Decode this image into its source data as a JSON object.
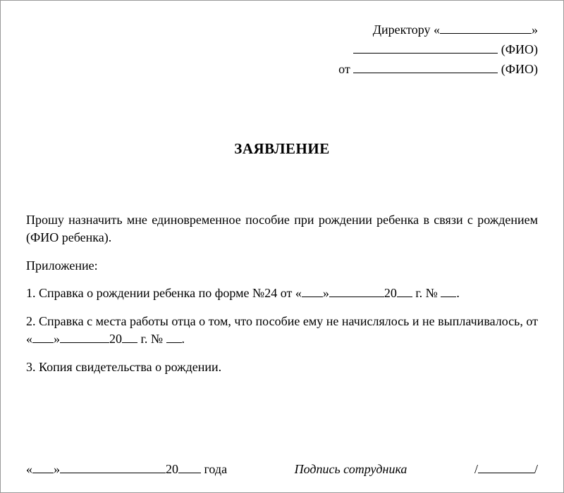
{
  "header": {
    "director_prefix": "Директору «",
    "director_blank_width": 130,
    "director_suffix": "»",
    "fio_blank_width": 205,
    "fio_label": "(ФИО)",
    "from_prefix": "от ",
    "from_blank_width": 205,
    "from_fio_label": "(ФИО)"
  },
  "title": "ЗАЯВЛЕНИЕ",
  "body": {
    "request": "Прошу назначить мне единовременное пособие при рождении ребенка в связи с рождением (ФИО ребенка).",
    "attachments_label": "Приложение:",
    "item1_pre": "1. Справка о рождении ребенка по форме №24 от «",
    "item1_day_w": 30,
    "item1_mid1": "»",
    "item1_month_w": 78,
    "item1_mid2": "20",
    "item1_year_w": 22,
    "item1_post": " г. № ",
    "item1_num_w": 22,
    "item1_end": ".",
    "item2_pre": "2. Справка с места работы отца о том, что пособие ему не начислялось и не выплачивалось, от «",
    "item2_day_w": 30,
    "item2_mid1": "»",
    "item2_month_w": 70,
    "item2_mid2": "20",
    "item2_year_w": 22,
    "item2_post": " г. № ",
    "item2_num_w": 22,
    "item2_end": ".",
    "item3": "3. Копия свидетельства о рождении."
  },
  "footer": {
    "date_open": "«",
    "date_day_w": 30,
    "date_mid1": "»",
    "date_month_w": 150,
    "date_mid2": "20",
    "date_year_w": 32,
    "date_post": " года",
    "sig_label": "Подпись сотрудника",
    "sig_blank_w": 80
  },
  "colors": {
    "text": "#000000",
    "border": "#999999",
    "background": "#ffffff"
  }
}
